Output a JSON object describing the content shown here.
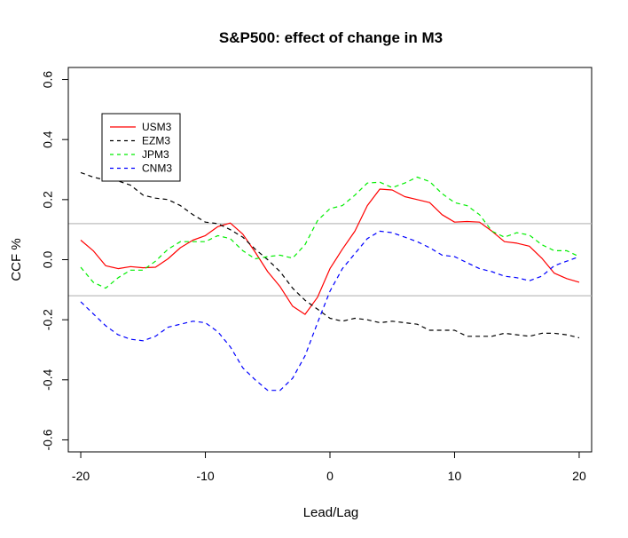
{
  "chart_data": {
    "type": "line",
    "title": "S&P500: effect of change in M3",
    "xlabel": "Lead/Lag",
    "ylabel": "CCF %",
    "xlim": [
      -21,
      21
    ],
    "ylim": [
      -0.64,
      0.64
    ],
    "xticks": [
      -20,
      -10,
      0,
      10,
      20
    ],
    "xtick_labels": [
      "-20",
      "-10",
      "0",
      "10",
      "20"
    ],
    "yticks": [
      -0.6,
      -0.4,
      -0.2,
      0.0,
      0.2,
      0.4,
      0.6
    ],
    "ytick_labels": [
      "-0.6",
      "-0.4",
      "-0.2",
      "0.0",
      "0.2",
      "0.4",
      "0.6"
    ],
    "grid": false,
    "legend_position": "top-left",
    "reference_lines": [
      0.12,
      -0.12
    ],
    "x": [
      -20,
      -19,
      -18,
      -17,
      -16,
      -15,
      -14,
      -13,
      -12,
      -11,
      -10,
      -9,
      -8,
      -7,
      -6,
      -5,
      -4,
      -3,
      -2,
      -1,
      0,
      1,
      2,
      3,
      4,
      5,
      6,
      7,
      8,
      9,
      10,
      11,
      12,
      13,
      14,
      15,
      16,
      17,
      18,
      19,
      20
    ],
    "series": [
      {
        "name": "USM3",
        "color": "#ff0000",
        "dash": "solid",
        "values": [
          0.065,
          0.03,
          -0.02,
          -0.03,
          -0.023,
          -0.027,
          -0.025,
          0.003,
          0.04,
          0.065,
          0.08,
          0.11,
          0.122,
          0.085,
          0.025,
          -0.04,
          -0.09,
          -0.155,
          -0.182,
          -0.125,
          -0.03,
          0.035,
          0.095,
          0.18,
          0.235,
          0.232,
          0.21,
          0.2,
          0.19,
          0.15,
          0.125,
          0.127,
          0.125,
          0.095,
          0.06,
          0.055,
          0.045,
          0.005,
          -0.045,
          -0.063,
          -0.075
        ]
      },
      {
        "name": "EZM3",
        "color": "#000000",
        "dash": "dashed",
        "values": [
          0.29,
          0.275,
          0.265,
          0.262,
          0.248,
          0.215,
          0.205,
          0.2,
          0.18,
          0.15,
          0.125,
          0.12,
          0.1,
          0.075,
          0.035,
          0.0,
          -0.04,
          -0.095,
          -0.135,
          -0.165,
          -0.195,
          -0.205,
          -0.195,
          -0.2,
          -0.21,
          -0.205,
          -0.21,
          -0.215,
          -0.235,
          -0.235,
          -0.235,
          -0.255,
          -0.255,
          -0.255,
          -0.245,
          -0.25,
          -0.255,
          -0.245,
          -0.245,
          -0.25,
          -0.26
        ]
      },
      {
        "name": "JPM3",
        "color": "#00ee00",
        "dash": "dashed",
        "values": [
          -0.025,
          -0.075,
          -0.095,
          -0.06,
          -0.035,
          -0.035,
          -0.005,
          0.035,
          0.06,
          0.06,
          0.06,
          0.08,
          0.07,
          0.03,
          0.003,
          0.01,
          0.015,
          0.005,
          0.05,
          0.13,
          0.17,
          0.18,
          0.215,
          0.255,
          0.258,
          0.24,
          0.255,
          0.275,
          0.26,
          0.22,
          0.19,
          0.18,
          0.15,
          0.095,
          0.075,
          0.09,
          0.082,
          0.05,
          0.03,
          0.03,
          0.01
        ]
      },
      {
        "name": "CNM3",
        "color": "#0000ff",
        "dash": "dashed",
        "values": [
          -0.14,
          -0.18,
          -0.22,
          -0.25,
          -0.265,
          -0.27,
          -0.255,
          -0.225,
          -0.215,
          -0.205,
          -0.21,
          -0.24,
          -0.29,
          -0.36,
          -0.4,
          -0.435,
          -0.435,
          -0.395,
          -0.32,
          -0.21,
          -0.105,
          -0.03,
          0.02,
          0.07,
          0.095,
          0.09,
          0.075,
          0.06,
          0.04,
          0.015,
          0.01,
          -0.01,
          -0.03,
          -0.04,
          -0.055,
          -0.06,
          -0.07,
          -0.055,
          -0.02,
          -0.005,
          0.01
        ]
      }
    ]
  }
}
